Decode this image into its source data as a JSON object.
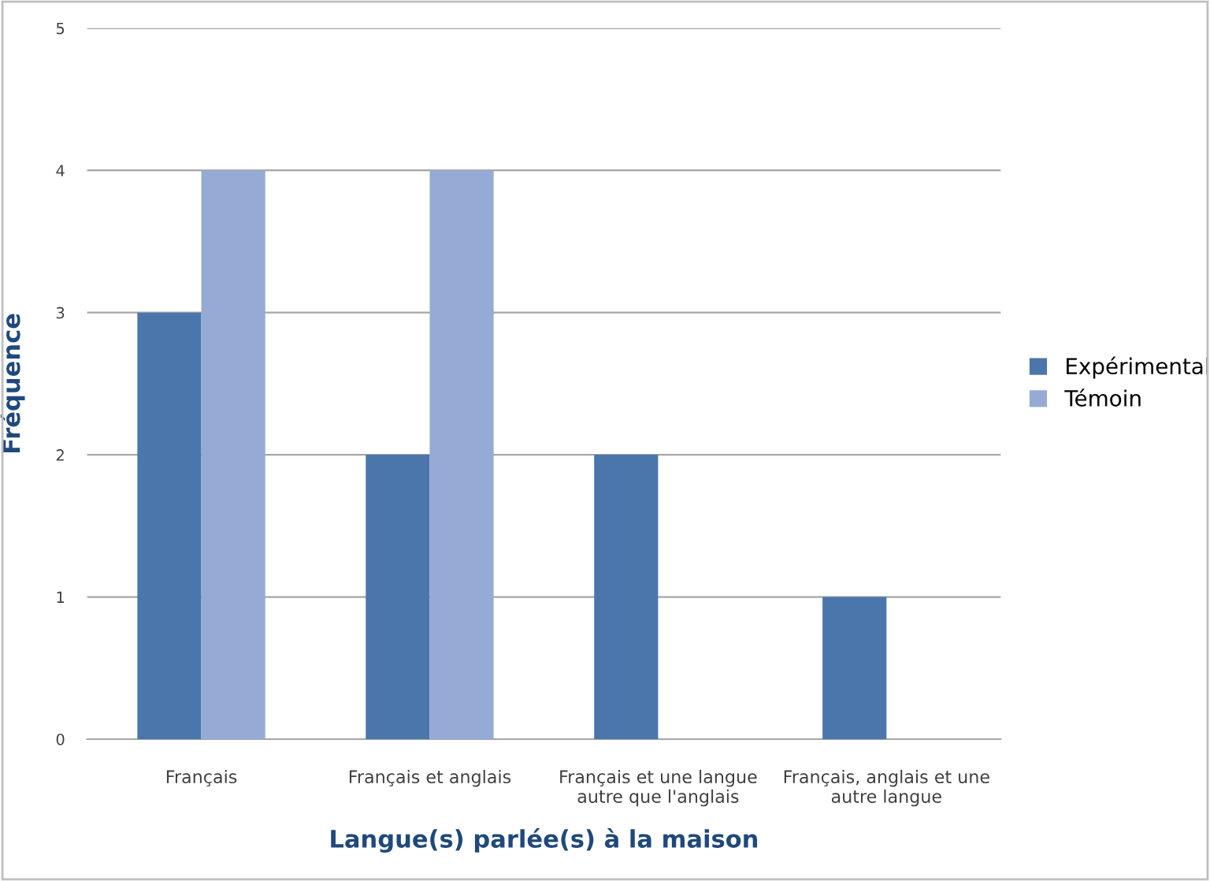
{
  "chart_data": {
    "type": "bar",
    "xlabel": "Langue(s) parlée(s) à la maison",
    "ylabel": "Fréquence",
    "categories": [
      "Français",
      "Français et anglais",
      "Français et une langue\nautre que l'anglais",
      "Français, anglais et une\nautre langue"
    ],
    "series": [
      {
        "name": "Expérimental",
        "color": "#4a76ab",
        "values": [
          3,
          2,
          2,
          1
        ]
      },
      {
        "name": "Témoin",
        "color": "#95abd5",
        "values": [
          4,
          4,
          0,
          0
        ]
      }
    ],
    "ylim": [
      0,
      5
    ],
    "yticks": [
      0,
      1,
      2,
      3,
      4,
      5
    ],
    "grid": "y",
    "legend": "right"
  }
}
